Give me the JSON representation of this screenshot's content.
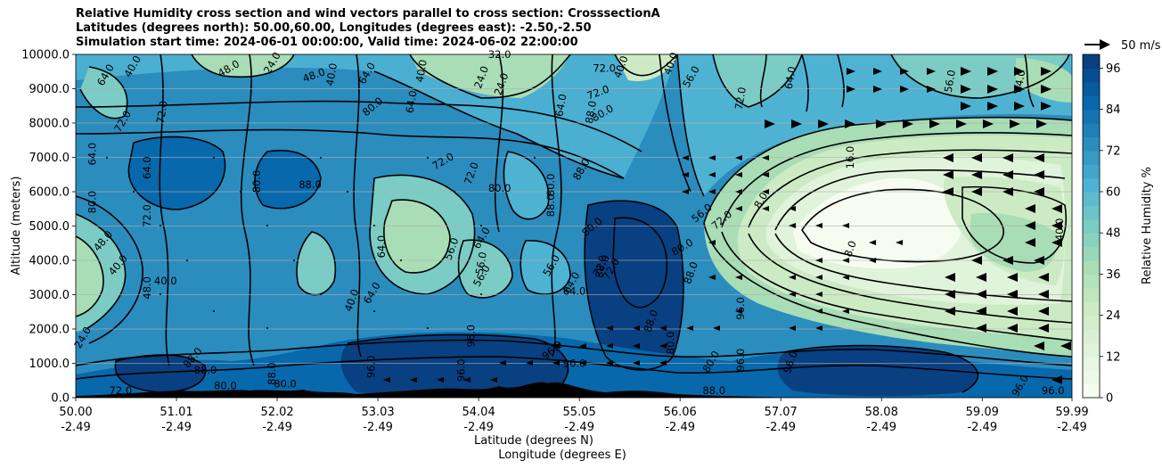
{
  "header": {
    "title_line1": "Relative Humidity cross section and wind vectors parallel to cross section: CrosssectionA",
    "title_line2": "Latitudes (degrees north): 50.00,60.00, Longitudes (degrees east): -2.50,-2.50",
    "title_line3": "Simulation start time: 2024-06-01 00:00:00, Valid time: 2024-06-02 22:00:00"
  },
  "chart_data": {
    "type": "heatmap",
    "ylabel": "Altitude (meters)",
    "xlabel_lat": "Latitude (degrees N)",
    "xlabel_lon": "Longitude (degrees E)",
    "y_ticks": [
      "0.0",
      "1000.0",
      "2000.0",
      "3000.0",
      "4000.0",
      "5000.0",
      "6000.0",
      "7000.0",
      "8000.0",
      "9000.0",
      "10000.0"
    ],
    "ylim": [
      0,
      10000
    ],
    "x_ticks_lat": [
      "50.00",
      "51.01",
      "52.02",
      "53.03",
      "54.04",
      "55.05",
      "56.06",
      "57.07",
      "58.08",
      "59.09",
      "59.99"
    ],
    "x_ticks_lon": [
      "-2.49",
      "-2.49",
      "-2.49",
      "-2.49",
      "-2.49",
      "-2.49",
      "-2.49",
      "-2.49",
      "-2.49",
      "-2.49",
      "-2.49"
    ],
    "xlim": [
      50.0,
      59.99
    ],
    "grid": "horizontal",
    "colorbar": {
      "label": "Relative Humidity %",
      "ticks": [
        "0",
        "12",
        "24",
        "36",
        "48",
        "60",
        "72",
        "84",
        "96"
      ],
      "range": [
        0,
        100
      ],
      "colormap": [
        "#f7fcf0",
        "#e0f3db",
        "#ccebc5",
        "#a8ddb5",
        "#7bccc4",
        "#4eb3d3",
        "#2b8cbe",
        "#0868ac",
        "#084081"
      ]
    },
    "quiver_key": {
      "label": "50 m/s"
    },
    "contour_labels": [
      {
        "t": "64.0",
        "x": 50.33,
        "y": 9350,
        "r": -60
      },
      {
        "t": "40.0",
        "x": 50.6,
        "y": 9600,
        "r": -60
      },
      {
        "t": "72.0",
        "x": 50.5,
        "y": 8000,
        "r": -60
      },
      {
        "t": "64.0",
        "x": 50.2,
        "y": 7100,
        "r": -90
      },
      {
        "t": "64.0",
        "x": 50.75,
        "y": 6700,
        "r": -90
      },
      {
        "t": "72.0",
        "x": 50.9,
        "y": 8300,
        "r": -80
      },
      {
        "t": "80.0",
        "x": 50.2,
        "y": 5700,
        "r": -90
      },
      {
        "t": "72.0",
        "x": 50.75,
        "y": 5300,
        "r": -90
      },
      {
        "t": "48.0",
        "x": 50.3,
        "y": 4500,
        "r": -50
      },
      {
        "t": "40.0",
        "x": 50.45,
        "y": 3800,
        "r": -50
      },
      {
        "t": "40.0",
        "x": 50.9,
        "y": 3300,
        "r": 0
      },
      {
        "t": "48.0",
        "x": 50.75,
        "y": 3200,
        "r": -90
      },
      {
        "t": "24.0",
        "x": 50.1,
        "y": 1700,
        "r": -60
      },
      {
        "t": "88.0",
        "x": 51.2,
        "y": 1100,
        "r": -50
      },
      {
        "t": "88.0",
        "x": 51.3,
        "y": 700,
        "r": 0
      },
      {
        "t": "72.0",
        "x": 50.45,
        "y": 100,
        "r": 0
      },
      {
        "t": "80.0",
        "x": 51.5,
        "y": 250,
        "r": 0
      },
      {
        "t": "48.0",
        "x": 51.55,
        "y": 9500,
        "r": -30
      },
      {
        "t": "24.0",
        "x": 52.0,
        "y": 9700,
        "r": -60
      },
      {
        "t": "48.0",
        "x": 52.4,
        "y": 9300,
        "r": -20
      },
      {
        "t": "40.0",
        "x": 52.6,
        "y": 9400,
        "r": -80
      },
      {
        "t": "64.0",
        "x": 52.95,
        "y": 9400,
        "r": -60
      },
      {
        "t": "80.0",
        "x": 53.0,
        "y": 8400,
        "r": -40
      },
      {
        "t": "80.0",
        "x": 51.85,
        "y": 6300,
        "r": -90
      },
      {
        "t": "88.0",
        "x": 52.35,
        "y": 6100,
        "r": 0
      },
      {
        "t": "64.0",
        "x": 53.1,
        "y": 4400,
        "r": -90
      },
      {
        "t": "64.0",
        "x": 53.0,
        "y": 3000,
        "r": -60
      },
      {
        "t": "40.0",
        "x": 52.8,
        "y": 2800,
        "r": -70
      },
      {
        "t": "88.0",
        "x": 52.0,
        "y": 700,
        "r": -90
      },
      {
        "t": "80.0",
        "x": 52.1,
        "y": 300,
        "r": 0
      },
      {
        "t": "96.0",
        "x": 53.0,
        "y": 900,
        "r": -90
      },
      {
        "t": "64.0",
        "x": 53.4,
        "y": 8600,
        "r": -80
      },
      {
        "t": "40.0",
        "x": 53.5,
        "y": 9500,
        "r": -80
      },
      {
        "t": "72.0",
        "x": 53.7,
        "y": 6800,
        "r": -30
      },
      {
        "t": "72.0",
        "x": 54.0,
        "y": 6500,
        "r": -70
      },
      {
        "t": "80.0",
        "x": 54.25,
        "y": 6000,
        "r": 0
      },
      {
        "t": "56.0",
        "x": 53.8,
        "y": 4300,
        "r": -70
      },
      {
        "t": "64.0",
        "x": 54.1,
        "y": 4600,
        "r": -60
      },
      {
        "t": "56.0",
        "x": 54.1,
        "y": 3900,
        "r": -80
      },
      {
        "t": "56.0",
        "x": 54.1,
        "y": 3500,
        "r": -60
      },
      {
        "t": "96.0",
        "x": 53.9,
        "y": 800,
        "r": -90
      },
      {
        "t": "96.0",
        "x": 54.0,
        "y": 1800,
        "r": -90
      },
      {
        "t": "24.0",
        "x": 54.1,
        "y": 9300,
        "r": -70
      },
      {
        "t": "32.0",
        "x": 54.25,
        "y": 9900,
        "r": 0
      },
      {
        "t": "24.0",
        "x": 54.3,
        "y": 9100,
        "r": -70
      },
      {
        "t": "88.0",
        "x": 55.2,
        "y": 8300,
        "r": -80
      },
      {
        "t": "80.0",
        "x": 55.3,
        "y": 8200,
        "r": -30
      },
      {
        "t": "72.0",
        "x": 55.25,
        "y": 8800,
        "r": -20
      },
      {
        "t": "64.0",
        "x": 54.9,
        "y": 8500,
        "r": -80
      },
      {
        "t": "80.0",
        "x": 54.8,
        "y": 6200,
        "r": -90
      },
      {
        "t": "88.0",
        "x": 55.1,
        "y": 6600,
        "r": -60
      },
      {
        "t": "88.0",
        "x": 54.8,
        "y": 5600,
        "r": -90
      },
      {
        "t": "80.0",
        "x": 55.2,
        "y": 4900,
        "r": -40
      },
      {
        "t": "56.0",
        "x": 54.8,
        "y": 3800,
        "r": -60
      },
      {
        "t": "64.0",
        "x": 55.0,
        "y": 3300,
        "r": -60
      },
      {
        "t": "64.0",
        "x": 55.0,
        "y": 3000,
        "r": 0
      },
      {
        "t": "72.0",
        "x": 55.3,
        "y": 3800,
        "r": -60
      },
      {
        "t": "72.0",
        "x": 55.4,
        "y": 3700,
        "r": -60
      },
      {
        "t": "88.0",
        "x": 55.3,
        "y": 3800,
        "r": -80
      },
      {
        "t": "96.0",
        "x": 54.8,
        "y": 1300,
        "r": -40
      },
      {
        "t": "88.0",
        "x": 55.8,
        "y": 2200,
        "r": -70
      },
      {
        "t": "96.0",
        "x": 55.0,
        "y": 900,
        "r": 0
      },
      {
        "t": "72.0",
        "x": 55.3,
        "y": 9500,
        "r": 0
      },
      {
        "t": "40.0",
        "x": 55.5,
        "y": 9600,
        "r": -70
      },
      {
        "t": "40.0",
        "x": 56.0,
        "y": 9700,
        "r": -70
      },
      {
        "t": "56.0",
        "x": 56.2,
        "y": 9300,
        "r": -60
      },
      {
        "t": "72.0",
        "x": 56.7,
        "y": 8700,
        "r": -80
      },
      {
        "t": "80.0",
        "x": 56.1,
        "y": 4300,
        "r": -30
      },
      {
        "t": "88.0",
        "x": 56.2,
        "y": 3600,
        "r": -70
      },
      {
        "t": "56.0",
        "x": 56.3,
        "y": 5300,
        "r": -40
      },
      {
        "t": "72.0",
        "x": 56.5,
        "y": 5100,
        "r": -40
      },
      {
        "t": "80.0",
        "x": 56.0,
        "y": 1600,
        "r": -90
      },
      {
        "t": "96.0",
        "x": 56.7,
        "y": 2600,
        "r": -90
      },
      {
        "t": "80.0",
        "x": 56.4,
        "y": 1000,
        "r": -60
      },
      {
        "t": "88.0",
        "x": 56.4,
        "y": 100,
        "r": 0
      },
      {
        "t": "96.0",
        "x": 56.7,
        "y": 1100,
        "r": -90
      },
      {
        "t": "8.0",
        "x": 56.9,
        "y": 5700,
        "r": -60
      },
      {
        "t": "8.0",
        "x": 57.8,
        "y": 4300,
        "r": -70
      },
      {
        "t": "16.0",
        "x": 57.8,
        "y": 7000,
        "r": -90
      },
      {
        "t": "96.0",
        "x": 57.2,
        "y": 1000,
        "r": -70
      },
      {
        "t": "64.0",
        "x": 57.2,
        "y": 9300,
        "r": -80
      },
      {
        "t": "64.0",
        "x": 59.5,
        "y": 9200,
        "r": -80
      },
      {
        "t": "56.0",
        "x": 58.8,
        "y": 9200,
        "r": -80
      },
      {
        "t": "40.0",
        "x": 59.9,
        "y": 4900,
        "r": -90
      },
      {
        "t": "96.0",
        "x": 59.5,
        "y": 300,
        "r": -60
      },
      {
        "t": "96.0",
        "x": 59.8,
        "y": 100,
        "r": 0
      }
    ]
  }
}
